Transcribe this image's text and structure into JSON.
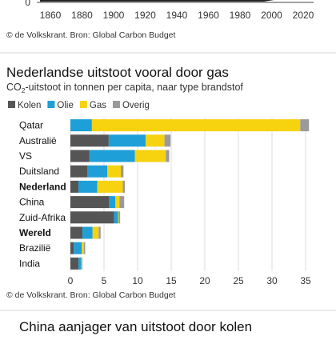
{
  "top_fragment": {
    "x_ticks": [
      "1860",
      "1880",
      "1900",
      "1920",
      "1940",
      "1960",
      "1980",
      "2000",
      "2020"
    ],
    "y_tick": "0",
    "credit": "© de Volkskrant. Bron: Global Carbon Budget"
  },
  "chart_data": {
    "type": "bar",
    "orientation": "horizontal",
    "stacked": true,
    "title": "Nederlandse uitstoot vooral door gas",
    "subtitle_prefix": "CO",
    "subtitle_sub": "2",
    "subtitle_suffix": "-uitstoot in tonnen per capita, naar type brandstof",
    "categories": [
      "Qatar",
      "Australië",
      "VS",
      "Duitsland",
      "Nederland",
      "China",
      "Zuid-Afrika",
      "Wereld",
      "Brazilië",
      "India"
    ],
    "bold_categories": [
      "Nederland",
      "Wereld"
    ],
    "series": [
      {
        "name": "Kolen",
        "color": "#555555",
        "values": [
          0.0,
          5.7,
          2.8,
          2.5,
          1.2,
          5.8,
          6.5,
          1.8,
          0.5,
          1.2
        ]
      },
      {
        "name": "Olie",
        "color": "#1e9fd8",
        "values": [
          3.2,
          5.5,
          6.8,
          3.0,
          2.8,
          0.9,
          0.6,
          1.5,
          1.2,
          0.4
        ]
      },
      {
        "name": "Gas",
        "color": "#f6d20f",
        "values": [
          31.0,
          2.8,
          4.6,
          2.0,
          3.8,
          0.6,
          0.1,
          0.9,
          0.3,
          0.1
        ]
      },
      {
        "name": "Overig",
        "color": "#9a9a9a",
        "values": [
          1.3,
          0.9,
          0.5,
          0.4,
          0.3,
          0.7,
          0.2,
          0.3,
          0.2,
          0.1
        ]
      }
    ],
    "x_ticks": [
      0,
      5,
      10,
      15,
      20,
      25,
      30,
      35
    ],
    "xlim": [
      0,
      35
    ],
    "legend_placement": "top-left",
    "grid": true,
    "credit": "© de Volkskrant. Bron: Global Carbon Budget"
  },
  "next_section": {
    "title": "China aanjager van uitstoot door kolen"
  }
}
